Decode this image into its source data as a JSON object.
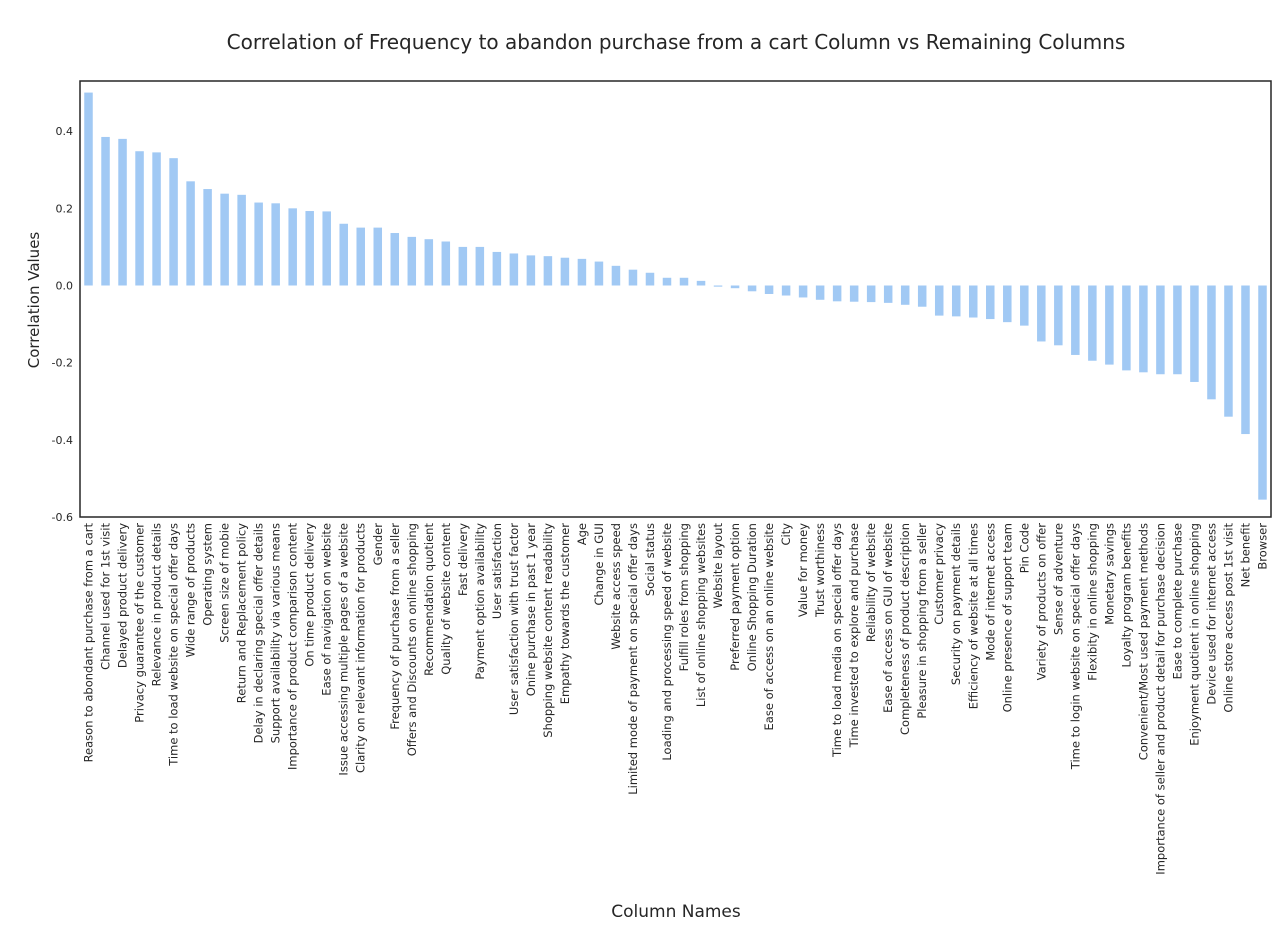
{
  "chart_data": {
    "type": "bar",
    "title": "Correlation of Frequency to abandon purchase from a cart Column vs Remaining Columns",
    "xlabel": "Column Names",
    "ylabel": "Correlation Values",
    "ylim": [
      -0.6,
      0.53
    ],
    "yticks": [
      -0.6,
      -0.4,
      -0.2,
      0.0,
      0.2,
      0.4
    ],
    "ytick_labels": [
      "-0.6",
      "-0.4",
      "-0.2",
      "0.0",
      "0.2",
      "0.4"
    ],
    "grid": false,
    "bar_color": "#a1c9f4",
    "categories": [
      "Reason to abondant purchase from a cart",
      "Channel used for 1st visit",
      "Delayed product delivery",
      "Privacy guarantee of the customer",
      "Relevance in product details",
      "Time to load website on special offer days",
      "Wide range of products",
      "Operating system",
      "Screen size of mobie",
      "Return and Replacement policy",
      "Delay in declaring special offer details",
      "Support availability via various means",
      "Importance of product comparison content",
      "On time product delivery",
      "Ease of navigation on website",
      "Issue accessing multiple pages of a website",
      "Clarity on relevant information for products",
      "Gender",
      "Frequency of purchase from a seller",
      "Offers and Discounts on online shopping",
      "Recommendation quotient",
      "Quality of website content",
      "Fast delivery",
      "Payment option availability",
      "User satisfaction",
      "User satisfaction with trust factor",
      "Onine purchase in past 1 year",
      "Shopping website content readability",
      "Empathy towards the customer",
      "Age",
      "Change in GUI",
      "Website access speed",
      "Limited mode of payment on special offer days",
      "Social status",
      "Loading and processing speed of website",
      "Fulfill roles from shopping",
      "List of online shopping websites",
      "Website layout",
      "Preferred payment option",
      "Online Shopping Duration",
      "Ease of access on an online website",
      "City",
      "Value for money",
      "Trust worthiness",
      "Time to load media on special offer days",
      "Time invested to explore and purchase",
      "Reliability of website",
      "Ease of access on GUI of website",
      "Completeness of product description",
      "Pleasure in shopping from a seller",
      "Customer privacy",
      "Security on payment details",
      "Efficiency of website at all times",
      "Mode of internet access",
      "Online presence of support team",
      "Pin Code",
      "Variety of products on offer",
      "Sense of adventure",
      "Time to login website on special offer days",
      "Flexibity in online shopping",
      "Monetary savings",
      "Loyalty program benefits",
      "Convenient/Most used payment methods",
      "Importance of seller and product detail for purchase decision",
      "Ease to complete purchase",
      "Enjoyment quotient in online shopping",
      "Device used for internet access",
      "Online store access post 1st visit",
      "Net benefit",
      "Browser"
    ],
    "values": [
      0.5,
      0.385,
      0.38,
      0.348,
      0.345,
      0.33,
      0.27,
      0.25,
      0.238,
      0.235,
      0.215,
      0.213,
      0.2,
      0.193,
      0.192,
      0.16,
      0.15,
      0.15,
      0.136,
      0.126,
      0.12,
      0.114,
      0.1,
      0.1,
      0.087,
      0.083,
      0.078,
      0.076,
      0.072,
      0.069,
      0.062,
      0.051,
      0.041,
      0.033,
      0.02,
      0.02,
      0.012,
      -0.003,
      -0.007,
      -0.015,
      -0.022,
      -0.026,
      -0.031,
      -0.037,
      -0.041,
      -0.042,
      -0.043,
      -0.045,
      -0.05,
      -0.055,
      -0.078,
      -0.08,
      -0.083,
      -0.087,
      -0.095,
      -0.104,
      -0.145,
      -0.155,
      -0.18,
      -0.195,
      -0.205,
      -0.22,
      -0.225,
      -0.23,
      -0.23,
      -0.25,
      -0.295,
      -0.34,
      -0.385,
      -0.555
    ]
  }
}
